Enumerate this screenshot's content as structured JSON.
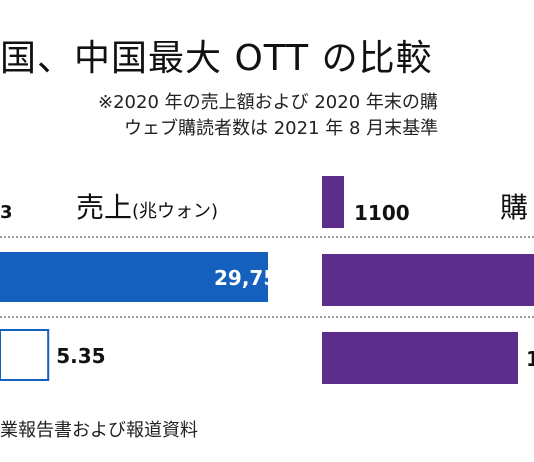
{
  "title": "国、中国最大 OTT の比較",
  "notes": [
    "※2020 年の売上額および 2020 年末の購",
    "ウェブ購読者数は 2021 年 8 月末基準"
  ],
  "footer": "業報告書および報道資料",
  "chart_data": [
    {
      "type": "bar",
      "orientation": "horizontal",
      "title": "売上",
      "unit": "(兆ウォン)",
      "top_label": "3",
      "series": [
        {
          "values": [
            29.75,
            5.35
          ],
          "colors": [
            "#1560bd",
            "#ffffff"
          ],
          "labels": [
            "29,75",
            "5.35"
          ]
        }
      ]
    },
    {
      "type": "bar",
      "orientation": "horizontal",
      "title": "購",
      "series": [
        {
          "values": [
            1100,
            null,
            null
          ],
          "labels": [
            "1100",
            "",
            "1"
          ]
        }
      ],
      "color": "#5c2d8a"
    }
  ]
}
